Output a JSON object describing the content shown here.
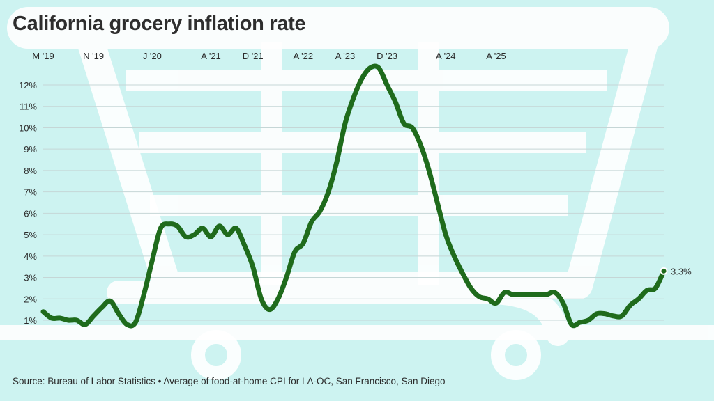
{
  "chart_data": {
    "type": "line",
    "title": "California grocery inflation rate",
    "xlabel": "",
    "ylabel": "",
    "ylim": [
      0.5,
      13
    ],
    "ytick_values": [
      1,
      2,
      3,
      4,
      5,
      6,
      7,
      8,
      9,
      10,
      11,
      12
    ],
    "ytick_labels": [
      "1%",
      "2%",
      "3%",
      "4%",
      "5%",
      "6%",
      "7%",
      "8%",
      "9%",
      "10%",
      "11%",
      "12%"
    ],
    "xtick_labels": [
      "M '19",
      "N '19",
      "J '20",
      "A '21",
      "D '21",
      "A '22",
      "A '23",
      "D '23",
      "A '24",
      "A '25"
    ],
    "xtick_positions": [
      0,
      6,
      13,
      20,
      25,
      31,
      36,
      41,
      48,
      54
    ],
    "series": [
      {
        "name": "Grocery inflation",
        "color": "#1f6b1c",
        "values": [
          1.4,
          1.1,
          1.1,
          1.0,
          1.0,
          0.8,
          1.2,
          1.6,
          1.9,
          1.3,
          0.8,
          0.9,
          2.2,
          3.8,
          5.3,
          5.5,
          5.4,
          4.9,
          5.0,
          5.3,
          4.9,
          5.4,
          5.0,
          5.3,
          4.5,
          3.5,
          2.0,
          1.5,
          2.0,
          3.0,
          4.2,
          4.6,
          5.6,
          6.1,
          7.0,
          8.4,
          10.2,
          11.4,
          12.3,
          12.8,
          12.8,
          12.0,
          11.2,
          10.2,
          10.0,
          9.2,
          8.0,
          6.5,
          5.0,
          4.0,
          3.2,
          2.5,
          2.1,
          2.0,
          1.8,
          2.3,
          2.2,
          2.2,
          2.2,
          2.2,
          2.2,
          2.3,
          1.8,
          0.8,
          0.9,
          1.0,
          1.3,
          1.3,
          1.2,
          1.2,
          1.7,
          2.0,
          2.4,
          2.5,
          3.3
        ]
      }
    ],
    "last_value_label": "3.3%",
    "source": "Source: Bureau of Labor Statistics • Average of food-at-home CPI for LA-OC, San Francisco, San Diego"
  },
  "colors": {
    "background": "#cdf3f1",
    "cart": "#ffffff",
    "line": "#1f6b1c",
    "grid": "#c5d6d6"
  }
}
